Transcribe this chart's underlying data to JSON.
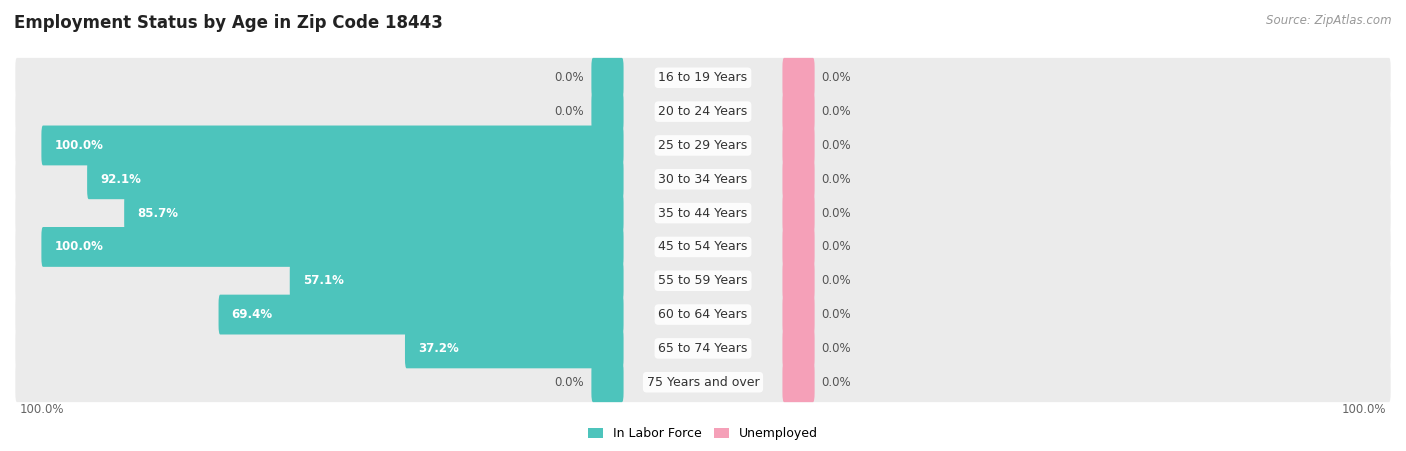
{
  "title": "Employment Status by Age in Zip Code 18443",
  "source": "Source: ZipAtlas.com",
  "categories": [
    "16 to 19 Years",
    "20 to 24 Years",
    "25 to 29 Years",
    "30 to 34 Years",
    "35 to 44 Years",
    "45 to 54 Years",
    "55 to 59 Years",
    "60 to 64 Years",
    "65 to 74 Years",
    "75 Years and over"
  ],
  "in_labor_force": [
    0.0,
    0.0,
    100.0,
    92.1,
    85.7,
    100.0,
    57.1,
    69.4,
    37.2,
    0.0
  ],
  "unemployed": [
    0.0,
    0.0,
    0.0,
    0.0,
    0.0,
    0.0,
    0.0,
    0.0,
    0.0,
    0.0
  ],
  "labor_force_color": "#4DC4BC",
  "unemployed_color": "#F5A0B8",
  "row_bg_color": "#EBEBEB",
  "title_fontsize": 12,
  "source_fontsize": 8.5,
  "label_fontsize": 8.5,
  "axis_label_fontsize": 8.5,
  "legend_fontsize": 9,
  "bar_height": 0.62,
  "stub_size": 5.0,
  "max_val": 100.0,
  "left_axis_label": "100.0%",
  "right_axis_label": "100.0%"
}
